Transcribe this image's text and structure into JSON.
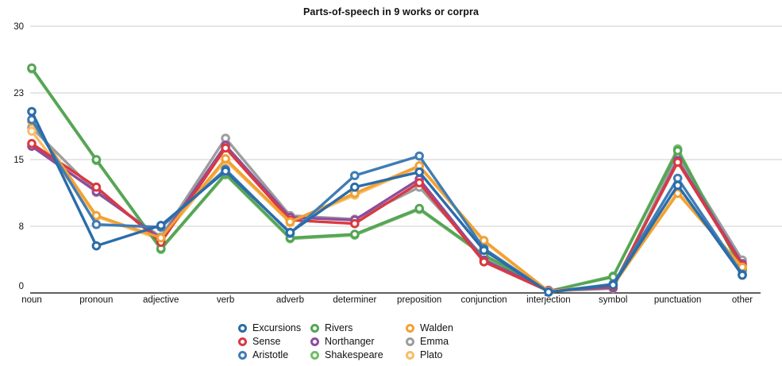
{
  "title": "Parts-of-speech in 9 works or corpra",
  "colors": {
    "axis_line": "#000000",
    "gridline": "#cccccc",
    "tick_text": "#111111"
  },
  "chart_data": {
    "type": "line",
    "title": "Parts-of-speech in 9 works or corpra",
    "xlabel": "",
    "ylabel": "",
    "ylim": [
      0,
      30
    ],
    "ytick_labels": [
      "0",
      "8",
      "15",
      "23",
      "30"
    ],
    "grid": true,
    "legend_position": "bottom",
    "categories": [
      "noun",
      "pronoun",
      "adjective",
      "verb",
      "adverb",
      "determiner",
      "preposition",
      "conjunction",
      "interjection",
      "symbol",
      "punctuation",
      "other"
    ],
    "series": [
      {
        "name": "Excursions",
        "color": "#2B6CA9",
        "values": [
          20.4,
          5.3,
          7.6,
          13.7,
          6.8,
          11.9,
          13.6,
          4.8,
          0.1,
          0.9,
          12.1,
          2.0
        ]
      },
      {
        "name": "Sense",
        "color": "#D93940",
        "values": [
          16.8,
          11.9,
          5.7,
          16.3,
          8.2,
          7.8,
          12.4,
          3.5,
          0.2,
          0.8,
          14.7,
          3.1
        ]
      },
      {
        "name": "Aristotle",
        "color": "#3F7DB5",
        "values": [
          19.5,
          7.7,
          7.4,
          13.9,
          6.7,
          13.2,
          15.4,
          5.0,
          0.1,
          1.0,
          12.9,
          2.1
        ]
      },
      {
        "name": "Rivers",
        "color": "#56A457",
        "values": [
          25.3,
          15.0,
          5.0,
          13.4,
          6.2,
          6.6,
          9.5,
          4.3,
          0.2,
          1.8,
          16.0,
          2.6
        ]
      },
      {
        "name": "Northanger",
        "color": "#8E4D9C",
        "values": [
          16.5,
          11.4,
          6.1,
          16.6,
          8.5,
          8.2,
          12.8,
          3.7,
          0.3,
          0.6,
          14.9,
          3.3
        ]
      },
      {
        "name": "Shakespeare",
        "color": "#74BC68",
        "values": [
          25.2,
          14.9,
          4.9,
          13.3,
          6.1,
          6.5,
          9.4,
          4.2,
          0.2,
          1.9,
          16.2,
          2.5
        ]
      },
      {
        "name": "Walden",
        "color": "#F2A134",
        "values": [
          19.3,
          8.7,
          6.2,
          15.1,
          8.0,
          11.2,
          14.3,
          5.9,
          0.2,
          0.9,
          11.2,
          2.9
        ]
      },
      {
        "name": "Emma",
        "color": "#9D9D9D",
        "values": [
          18.6,
          11.3,
          6.3,
          17.4,
          8.7,
          8.3,
          11.9,
          4.0,
          0.2,
          0.5,
          15.5,
          3.7
        ]
      },
      {
        "name": "Plato",
        "color": "#F7BE67",
        "values": [
          18.2,
          8.6,
          6.0,
          14.9,
          7.9,
          11.0,
          14.2,
          5.8,
          0.1,
          0.8,
          11.4,
          2.8
        ]
      }
    ],
    "draw_order": [
      "Emma",
      "Plato",
      "Shakespeare",
      "Rivers",
      "Northanger",
      "Sense",
      "Walden",
      "Aristotle",
      "Excursions"
    ],
    "legend_columns": [
      [
        "Excursions",
        "Sense",
        "Aristotle"
      ],
      [
        "Rivers",
        "Northanger",
        "Shakespeare"
      ],
      [
        "Walden",
        "Emma",
        "Plato"
      ]
    ]
  }
}
